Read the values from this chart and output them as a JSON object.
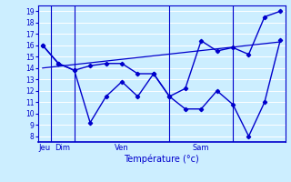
{
  "background_color": "#cceeff",
  "line_color": "#0000cc",
  "grid_color": "#ffffff",
  "yticks": [
    8,
    9,
    10,
    11,
    12,
    13,
    14,
    15,
    16,
    17,
    18,
    19
  ],
  "ylim": [
    7.5,
    19.5
  ],
  "xlim": [
    -0.3,
    15.3
  ],
  "xlabel": "Température (°c)",
  "day_labels": [
    "Jeu",
    "Dim",
    "Ven",
    "Sam"
  ],
  "day_positions": [
    0,
    2.5,
    8.5,
    12.5
  ],
  "vline_positions": [
    0.5,
    2.0,
    8.0,
    12.0
  ],
  "series_low": {
    "x": [
      0,
      1,
      2,
      3,
      4,
      5,
      6,
      7,
      8,
      9,
      10,
      11,
      12,
      13,
      14,
      15
    ],
    "y": [
      16,
      14.4,
      13.8,
      9.2,
      11.5,
      12.8,
      11.5,
      13.5,
      11.5,
      10.4,
      10.4,
      12.0,
      10.8,
      8.0,
      11.0,
      16.5
    ]
  },
  "series_high": {
    "x": [
      0,
      1,
      2,
      3,
      4,
      5,
      6,
      7,
      8,
      9,
      10,
      11,
      12,
      13,
      14,
      15
    ],
    "y": [
      16,
      14.4,
      13.8,
      14.2,
      14.4,
      14.4,
      13.5,
      13.5,
      11.5,
      12.2,
      16.4,
      15.5,
      15.8,
      15.2,
      18.5,
      19.0
    ]
  },
  "trend": {
    "x": [
      0,
      15
    ],
    "y": [
      14.0,
      16.3
    ]
  }
}
